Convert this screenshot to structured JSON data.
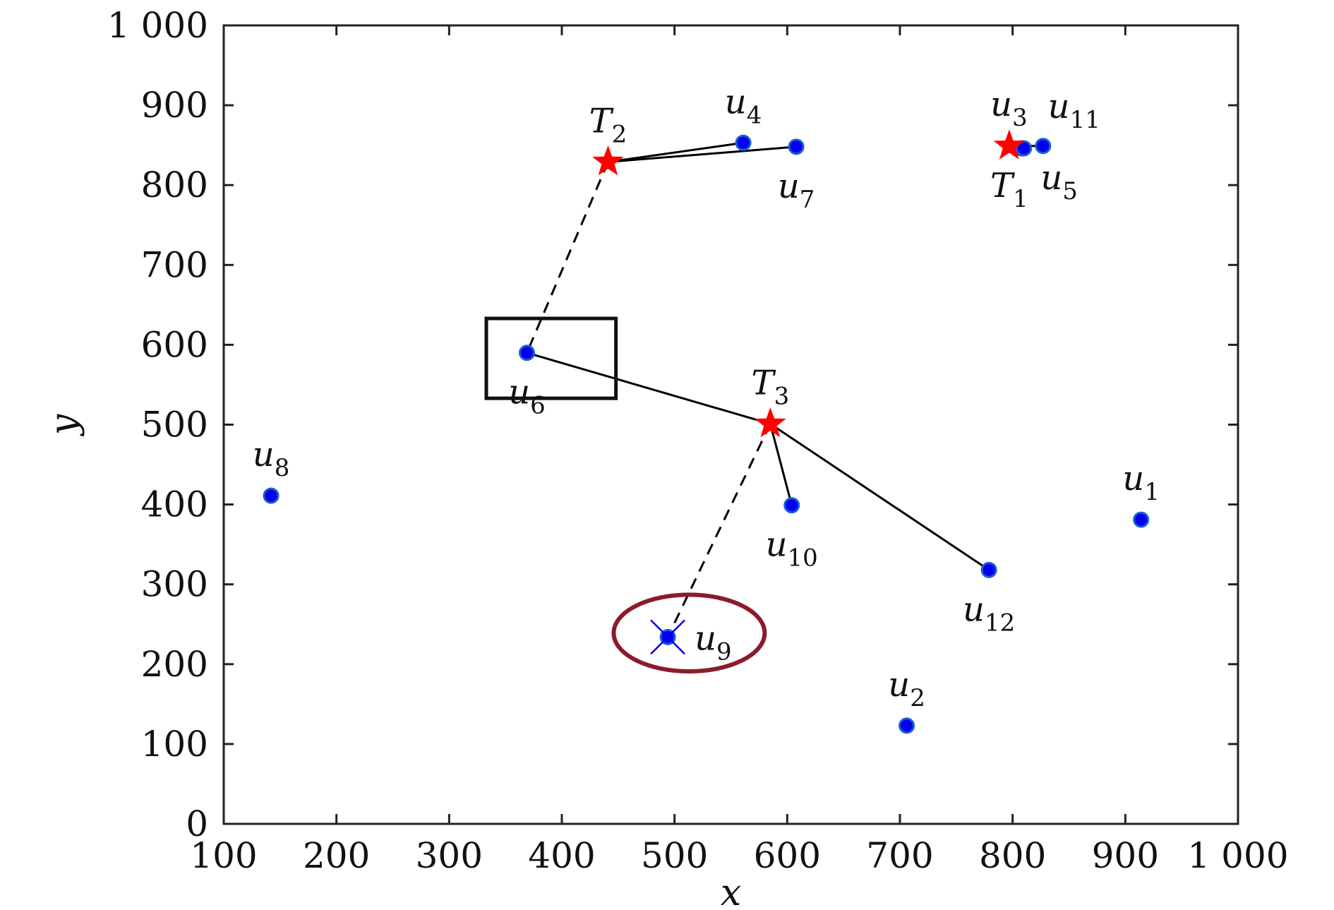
{
  "chart_data": {
    "type": "scatter",
    "title": "",
    "xlabel": "x",
    "ylabel": "y",
    "xlim": [
      100,
      1000
    ],
    "ylim": [
      0,
      1000
    ],
    "xticks": [
      100,
      200,
      300,
      400,
      500,
      600,
      700,
      800,
      900,
      1000
    ],
    "yticks": [
      0,
      100,
      200,
      300,
      400,
      500,
      600,
      700,
      800,
      900,
      1000
    ],
    "xtick_labels": [
      "100",
      "200",
      "300",
      "400",
      "500",
      "600",
      "700",
      "800",
      "900",
      "1 000"
    ],
    "ytick_labels": [
      "0",
      "100",
      "200",
      "300",
      "400",
      "500",
      "600",
      "700",
      "800",
      "900",
      "1 000"
    ],
    "grid": false,
    "colors": {
      "user": "#0000ee",
      "user_edge": "#1a5fd0",
      "target": "#ff0000",
      "ellipse": "#8b1a2b",
      "line": "#000000"
    },
    "users": [
      {
        "id": "u1",
        "base": "u",
        "sub": "1",
        "x": 914,
        "y": 381,
        "label_pos": "above"
      },
      {
        "id": "u2",
        "base": "u",
        "sub": "2",
        "x": 706,
        "y": 123,
        "label_pos": "above"
      },
      {
        "id": "u3",
        "base": "u",
        "sub": "3",
        "x": 808,
        "y": 846,
        "label_pos": "above-left"
      },
      {
        "id": "u4",
        "base": "u",
        "sub": "4",
        "x": 561,
        "y": 853,
        "label_pos": "above"
      },
      {
        "id": "u5",
        "base": "u",
        "sub": "5",
        "x": 810,
        "y": 846,
        "label_pos": "below-right"
      },
      {
        "id": "u6",
        "base": "u",
        "sub": "6",
        "x": 369,
        "y": 590,
        "label_pos": "below"
      },
      {
        "id": "u7",
        "base": "u",
        "sub": "7",
        "x": 608,
        "y": 848,
        "label_pos": "below"
      },
      {
        "id": "u8",
        "base": "u",
        "sub": "8",
        "x": 142,
        "y": 411,
        "label_pos": "above"
      },
      {
        "id": "u9",
        "base": "u",
        "sub": "9",
        "x": 494,
        "y": 234,
        "label_pos": "right"
      },
      {
        "id": "u10",
        "base": "u",
        "sub": "10",
        "x": 604,
        "y": 399,
        "label_pos": "below"
      },
      {
        "id": "u11",
        "base": "u",
        "sub": "11",
        "x": 827,
        "y": 849,
        "label_pos": "above-right"
      },
      {
        "id": "u12",
        "base": "u",
        "sub": "12",
        "x": 779,
        "y": 318,
        "label_pos": "below"
      }
    ],
    "targets": [
      {
        "id": "T1",
        "base": "T",
        "sub": "1",
        "x": 797,
        "y": 849,
        "label_pos": "below"
      },
      {
        "id": "T2",
        "base": "T",
        "sub": "2",
        "x": 441,
        "y": 829,
        "label_pos": "above"
      },
      {
        "id": "T3",
        "base": "T",
        "sub": "3",
        "x": 585,
        "y": 501,
        "label_pos": "above"
      }
    ],
    "links": [
      {
        "from": "T1",
        "to": "u5",
        "style": "solid"
      },
      {
        "from": "T1",
        "to": "u11",
        "style": "solid"
      },
      {
        "from": "T2",
        "to": "u4",
        "style": "solid"
      },
      {
        "from": "T2",
        "to": "u7",
        "style": "solid"
      },
      {
        "from": "T2",
        "to": "u6",
        "style": "dashed"
      },
      {
        "from": "T3",
        "to": "u6",
        "style": "solid"
      },
      {
        "from": "T3",
        "to": "u10",
        "style": "solid"
      },
      {
        "from": "T3",
        "to": "u12",
        "style": "solid"
      },
      {
        "from": "T3",
        "to": "u9",
        "style": "dashed"
      }
    ],
    "annotations": [
      {
        "type": "rectangle",
        "x0": 333,
        "x1": 448,
        "y0": 533,
        "y1": 633,
        "around": "u6"
      },
      {
        "type": "ellipse",
        "cx": 513,
        "cy": 239,
        "rx": 67,
        "ry": 48,
        "around": "u9"
      },
      {
        "type": "cross",
        "at": "u9"
      }
    ]
  }
}
